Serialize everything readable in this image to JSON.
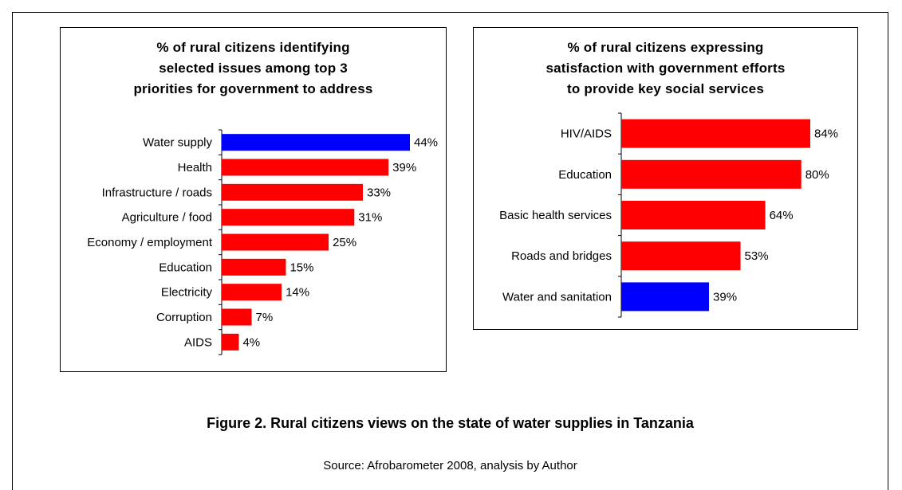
{
  "chart_data": [
    {
      "type": "bar",
      "orientation": "horizontal",
      "title": [
        "% of rural citizens identifying",
        "selected issues among top 3",
        "priorities for government to address"
      ],
      "categories": [
        "Water supply",
        "Health",
        "Infrastructure / roads",
        "Agriculture / food",
        "Economy / employment",
        "Education",
        "Electricity",
        "Corruption",
        "AIDS"
      ],
      "values": [
        44,
        39,
        33,
        31,
        25,
        15,
        14,
        7,
        4
      ],
      "value_labels": [
        "44%",
        "39%",
        "33%",
        "31%",
        "25%",
        "15%",
        "14%",
        "7%",
        "4%"
      ],
      "bar_colors": [
        "#0000ff",
        "#ff0000",
        "#ff0000",
        "#ff0000",
        "#ff0000",
        "#ff0000",
        "#ff0000",
        "#ff0000",
        "#ff0000"
      ],
      "xlim": [
        0,
        44
      ],
      "legend": false,
      "grid": false
    },
    {
      "type": "bar",
      "orientation": "horizontal",
      "title": [
        "% of rural citizens expressing",
        "satisfaction with government efforts",
        "to provide key social services"
      ],
      "categories": [
        "HIV/AIDS",
        "Education",
        "Basic health services",
        "Roads and bridges",
        "Water and sanitation"
      ],
      "values": [
        84,
        80,
        64,
        53,
        39
      ],
      "value_labels": [
        "84%",
        "80%",
        "64%",
        "53%",
        "39%"
      ],
      "bar_colors": [
        "#ff0000",
        "#ff0000",
        "#ff0000",
        "#ff0000",
        "#0000ff"
      ],
      "xlim": [
        0,
        84
      ],
      "legend": false,
      "grid": false
    }
  ],
  "caption": "Figure 2. Rural citizens views on the state of water supplies in Tanzania",
  "source": "Source: Afrobarometer 2008, analysis by Author"
}
